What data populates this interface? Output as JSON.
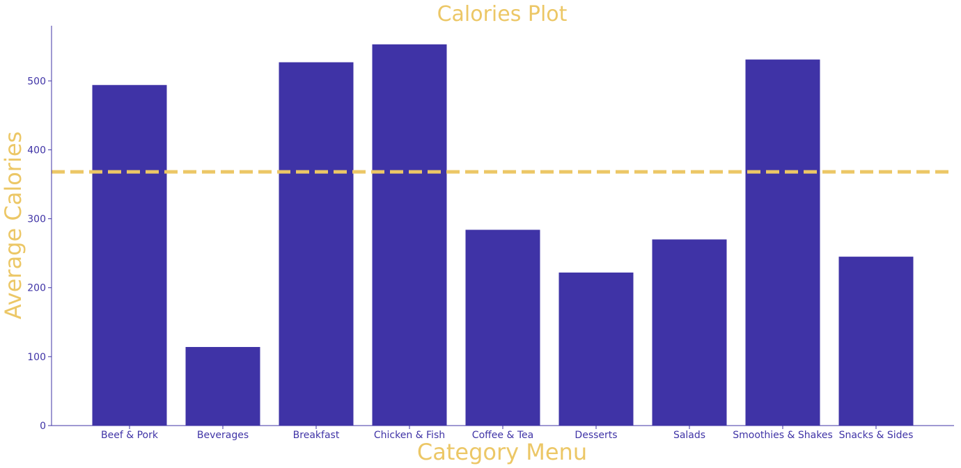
{
  "chart_data": {
    "type": "bar",
    "title": "Calories Plot",
    "xlabel": "Category Menu",
    "ylabel": "Average Calories",
    "categories": [
      "Beef & Pork",
      "Beverages",
      "Breakfast",
      "Chicken & Fish",
      "Coffee & Tea",
      "Desserts",
      "Salads",
      "Smoothies & Shakes",
      "Snacks & Sides"
    ],
    "values": [
      494,
      114,
      527,
      553,
      284,
      222,
      270,
      531,
      245
    ],
    "reference_line": {
      "value": 368,
      "style": "dashed"
    },
    "ylim": [
      0,
      580
    ],
    "yticks": [
      0,
      100,
      200,
      300,
      400,
      500
    ],
    "grid": false,
    "legend": "none",
    "colors": {
      "bar": "#3f33a6",
      "axis": "#3f33a6",
      "tick_text": "#3f33a6",
      "title": "#ecc766",
      "reference_line": "#ecc766"
    }
  }
}
